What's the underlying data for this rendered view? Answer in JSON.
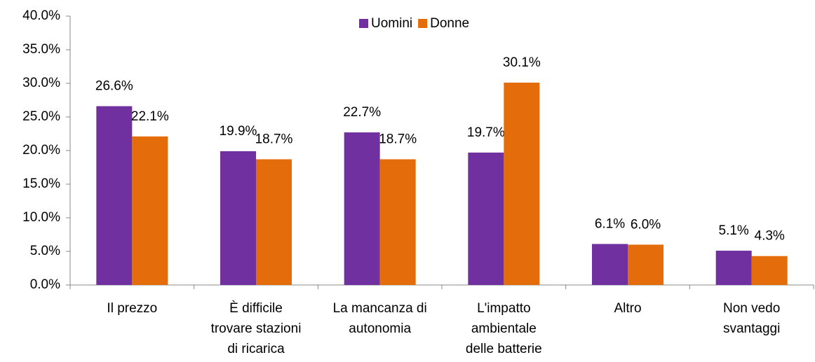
{
  "chart_data": {
    "type": "bar",
    "categories": [
      "Il prezzo",
      "È difficile\ntrovare stazioni\ndi ricarica",
      "La mancanza di\nautonomia",
      "L'impatto\nambientale\ndelle batterie",
      "Altro",
      "Non vedo\nsvantaggi"
    ],
    "series": [
      {
        "name": "Uomini",
        "color": "#7030a0",
        "values": [
          26.6,
          19.9,
          22.7,
          19.7,
          6.1,
          5.1
        ],
        "value_labels": [
          "26.6%",
          "19.9%",
          "22.7%",
          "19.7%",
          "6.1%",
          "5.1%"
        ]
      },
      {
        "name": "Donne",
        "color": "#e46c0a",
        "values": [
          22.1,
          18.7,
          18.7,
          30.1,
          6.0,
          4.3
        ],
        "value_labels": [
          "22.1%",
          "18.7%",
          "18.7%",
          "30.1%",
          "6.0%",
          "4.3%"
        ]
      }
    ],
    "ylim": [
      0,
      40
    ],
    "yticks": [
      {
        "value": 0,
        "label": "0.0%"
      },
      {
        "value": 5,
        "label": "5.0%"
      },
      {
        "value": 10,
        "label": "10.0%"
      },
      {
        "value": 15,
        "label": "15.0%"
      },
      {
        "value": 20,
        "label": "20.0%"
      },
      {
        "value": 25,
        "label": "25.0%"
      },
      {
        "value": 30,
        "label": "30.0%"
      },
      {
        "value": 35,
        "label": "35.0%"
      },
      {
        "value": 40,
        "label": "40.0%"
      }
    ],
    "legend": "top",
    "grid": false
  }
}
